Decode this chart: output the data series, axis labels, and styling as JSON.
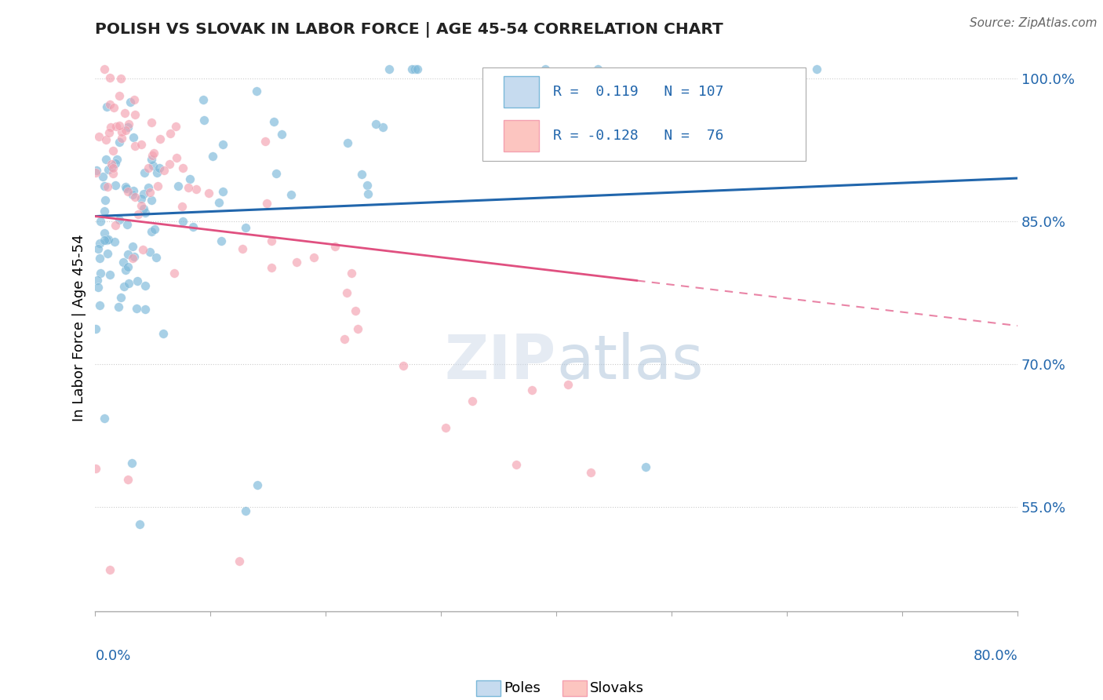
{
  "title": "POLISH VS SLOVAK IN LABOR FORCE | AGE 45-54 CORRELATION CHART",
  "source": "Source: ZipAtlas.com",
  "ylabel": "In Labor Force | Age 45-54",
  "right_ytick_vals": [
    1.0,
    0.85,
    0.7,
    0.55
  ],
  "xmin": 0.0,
  "xmax": 0.8,
  "ymin": 0.44,
  "ymax": 1.035,
  "r_poles": 0.119,
  "n_poles": 107,
  "r_slovaks": -0.128,
  "n_slovaks": 76,
  "blue_scatter": "#7ab8d9",
  "blue_line": "#2166ac",
  "pink_scatter": "#f4a0b0",
  "pink_line": "#e05080",
  "blue_fill": "#c6dbef",
  "pink_fill": "#fcc5c0",
  "watermark": "ZIPatlas",
  "legend_label_poles": "Poles",
  "legend_label_slovaks": "Slovaks",
  "seed": 12
}
